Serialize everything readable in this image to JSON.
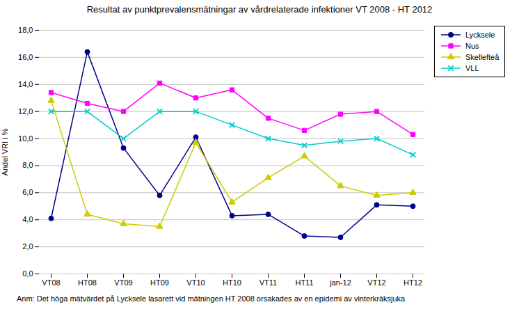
{
  "chart_data": {
    "type": "line",
    "title": "Resultat av punktprevalensmätningar av vårdrelaterade infektioner VT 2008 - HT 2012",
    "ylabel": "Andel VRI i %",
    "annotation": "Anm: Det höga mätvärdet på Lycksele lasarett vid mätningen HT 2008 orsakades av en epidemi av vinterkräksjuka",
    "categories": [
      "VT08",
      "HT08",
      "VT09",
      "HT09",
      "VT10",
      "HT10",
      "VT11",
      "HT11",
      "jan-12",
      "VT12",
      "HT12"
    ],
    "series": [
      {
        "name": "Lycksele",
        "color": "#00008B",
        "marker": "circle",
        "line_style": "solid",
        "values": [
          4.1,
          16.4,
          9.3,
          5.8,
          10.1,
          4.3,
          4.4,
          2.8,
          2.7,
          5.1,
          5.0
        ]
      },
      {
        "name": "Nus",
        "color": "#FF00FF",
        "marker": "square",
        "line_style": "solid",
        "values": [
          13.4,
          12.6,
          12.0,
          14.1,
          13.0,
          13.6,
          11.5,
          10.6,
          11.8,
          12.0,
          10.3
        ]
      },
      {
        "name": "Skellefteå",
        "color": "#CCCC00",
        "marker": "triangle",
        "line_style": "solid",
        "values": [
          12.8,
          4.4,
          3.7,
          3.5,
          9.7,
          5.3,
          7.1,
          8.7,
          6.5,
          5.8,
          6.0
        ]
      },
      {
        "name": "VLL",
        "color": "#00CCCC",
        "marker": "x",
        "line_style": "solid",
        "values": [
          12.0,
          12.0,
          10.0,
          12.0,
          12.0,
          11.0,
          10.0,
          9.5,
          9.8,
          10.0,
          8.8
        ]
      }
    ],
    "ylim": [
      0.0,
      18.0
    ],
    "yticks": [
      {
        "value": 0.0,
        "label": "0,0"
      },
      {
        "value": 2.0,
        "label": "2,0"
      },
      {
        "value": 4.0,
        "label": "4,0"
      },
      {
        "value": 6.0,
        "label": "6,0"
      },
      {
        "value": 8.0,
        "label": "8,0"
      },
      {
        "value": 10.0,
        "label": "10,0"
      },
      {
        "value": 12.0,
        "label": "12,0"
      },
      {
        "value": 14.0,
        "label": "14,0"
      },
      {
        "value": 16.0,
        "label": "16,0"
      },
      {
        "value": 18.0,
        "label": "18,0"
      }
    ],
    "grid": "y",
    "legend": "right"
  }
}
